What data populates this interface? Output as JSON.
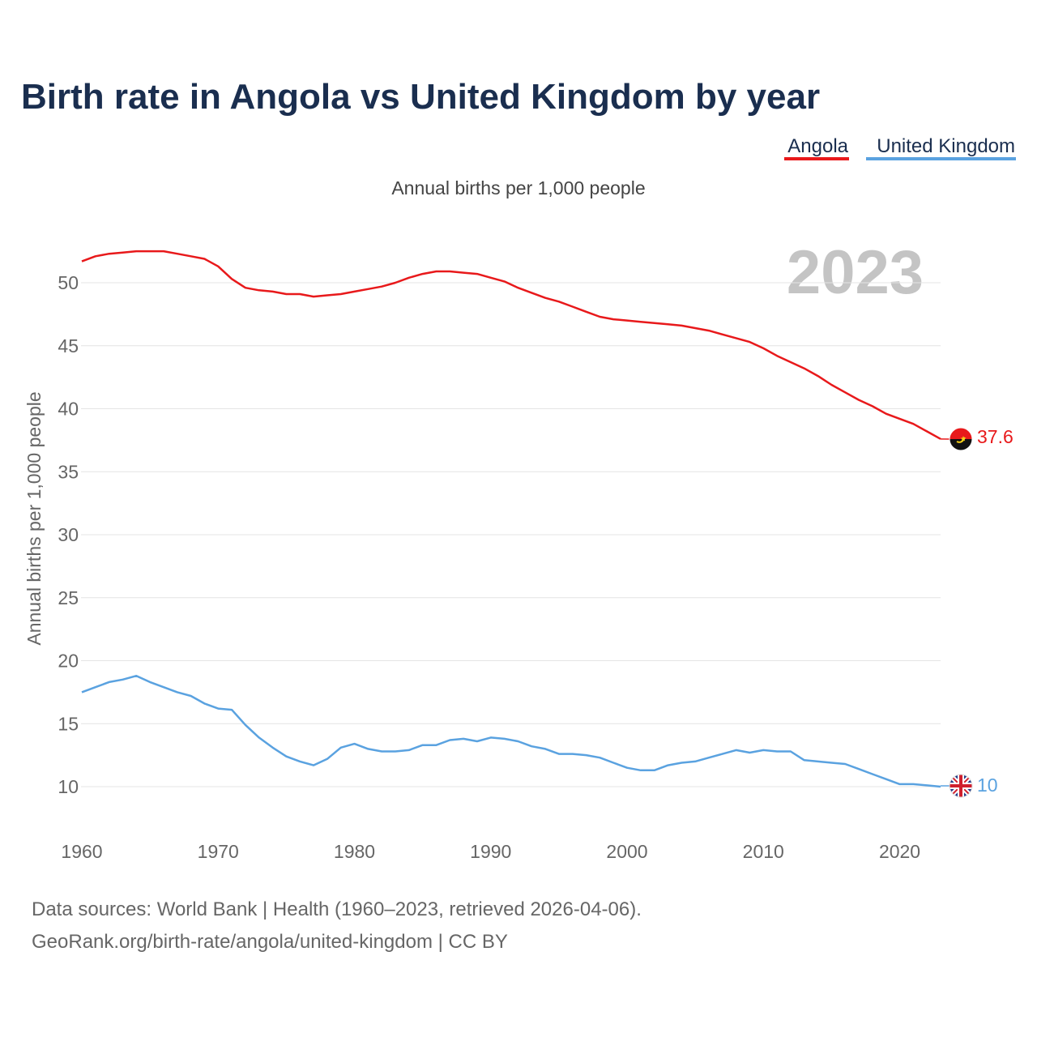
{
  "chart_data": {
    "type": "line",
    "title": "Birth rate in Angola vs United Kingdom by year",
    "subtitle": "Annual births per 1,000 people",
    "ylabel": "Annual births per 1,000 people",
    "xlabel": "",
    "watermark_year": "2023",
    "xlim": [
      1960,
      2023
    ],
    "ylim": [
      7,
      53
    ],
    "x_ticks": [
      1960,
      1970,
      1980,
      1990,
      2000,
      2010,
      2020
    ],
    "y_ticks": [
      10,
      15,
      20,
      25,
      30,
      35,
      40,
      45,
      50
    ],
    "grid": true,
    "legend_position": "top-right",
    "years": [
      1960,
      1961,
      1962,
      1963,
      1964,
      1965,
      1966,
      1967,
      1968,
      1969,
      1970,
      1971,
      1972,
      1973,
      1974,
      1975,
      1976,
      1977,
      1978,
      1979,
      1980,
      1981,
      1982,
      1983,
      1984,
      1985,
      1986,
      1987,
      1988,
      1989,
      1990,
      1991,
      1992,
      1993,
      1994,
      1995,
      1996,
      1997,
      1998,
      1999,
      2000,
      2001,
      2002,
      2003,
      2004,
      2005,
      2006,
      2007,
      2008,
      2009,
      2010,
      2011,
      2012,
      2013,
      2014,
      2015,
      2016,
      2017,
      2018,
      2019,
      2020,
      2021,
      2022,
      2023
    ],
    "series": [
      {
        "name": "Angola",
        "color": "#e8191b",
        "end_label": "37.6",
        "flag": "angola",
        "values": [
          51.7,
          52.1,
          52.3,
          52.4,
          52.5,
          52.5,
          52.5,
          52.3,
          52.1,
          51.9,
          51.3,
          50.3,
          49.6,
          49.4,
          49.3,
          49.1,
          49.1,
          48.9,
          49.0,
          49.1,
          49.3,
          49.5,
          49.7,
          50.0,
          50.4,
          50.7,
          50.9,
          50.9,
          50.8,
          50.7,
          50.4,
          50.1,
          49.6,
          49.2,
          48.8,
          48.5,
          48.1,
          47.7,
          47.3,
          47.1,
          47.0,
          46.9,
          46.8,
          46.7,
          46.6,
          46.4,
          46.2,
          45.9,
          45.6,
          45.3,
          44.8,
          44.2,
          43.7,
          43.2,
          42.6,
          41.9,
          41.3,
          40.7,
          40.2,
          39.6,
          39.2,
          38.8,
          38.2,
          37.6
        ]
      },
      {
        "name": "United Kingdom",
        "color": "#5aa2e0",
        "end_label": "10",
        "flag": "united-kingdom",
        "values": [
          17.5,
          17.9,
          18.3,
          18.5,
          18.8,
          18.3,
          17.9,
          17.5,
          17.2,
          16.6,
          16.2,
          16.1,
          14.9,
          13.9,
          13.1,
          12.4,
          12.0,
          11.7,
          12.2,
          13.1,
          13.4,
          13.0,
          12.8,
          12.8,
          12.9,
          13.3,
          13.3,
          13.7,
          13.8,
          13.6,
          13.9,
          13.8,
          13.6,
          13.2,
          13.0,
          12.6,
          12.6,
          12.5,
          12.3,
          11.9,
          11.5,
          11.3,
          11.3,
          11.7,
          11.9,
          12.0,
          12.3,
          12.6,
          12.9,
          12.7,
          12.9,
          12.8,
          12.8,
          12.1,
          12.0,
          11.9,
          11.8,
          11.4,
          11.0,
          10.6,
          10.2,
          10.2,
          10.1,
          10.0
        ]
      }
    ]
  },
  "legend": {
    "items": [
      {
        "label": "Angola",
        "color": "#e8191b"
      },
      {
        "label": "United Kingdom",
        "color": "#5aa2e0"
      }
    ]
  },
  "footer": {
    "line1": "Data sources: World Bank | Health (1960–2023, retrieved 2026-04-06).",
    "line2": "GeoRank.org/birth-rate/angola/united-kingdom | CC BY"
  }
}
